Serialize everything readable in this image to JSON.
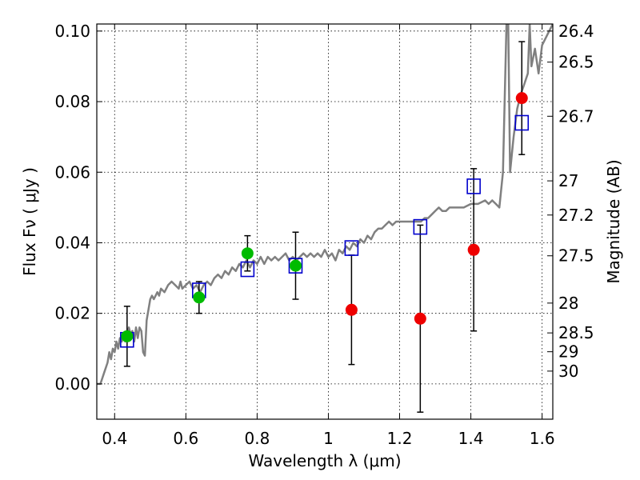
{
  "chart_data": {
    "type": "scatter",
    "xlabel": "Wavelength  λ (μm)",
    "ylabel": "Flux  Fν  ( μJy )",
    "y2label": "Magnitude (AB)",
    "xlim": [
      0.35,
      1.63
    ],
    "ylim": [
      -0.01,
      0.102
    ],
    "grid": true,
    "x_ticks": [
      0.4,
      0.6,
      0.8,
      1.0,
      1.2,
      1.4,
      1.6
    ],
    "x_tick_labels": [
      "0.4",
      "0.6",
      "0.8",
      "1",
      "1.2",
      "1.4",
      "1.6"
    ],
    "y_ticks": [
      0.0,
      0.02,
      0.04,
      0.06,
      0.08,
      0.1
    ],
    "y_tick_labels": [
      "0.00",
      "0.02",
      "0.04",
      "0.06",
      "0.08",
      "0.10"
    ],
    "mag_ticks": [
      26.4,
      26.5,
      26.7,
      27,
      27.2,
      27.5,
      28,
      28.5,
      29,
      30
    ],
    "mag_tick_labels": [
      "26.4",
      "26.5",
      "26.7",
      "27",
      "27.2",
      "27.5",
      "28",
      "28.5",
      "29",
      "30"
    ],
    "colors": {
      "model": "#808080",
      "model_points": "#0000cc",
      "observed_detected": "#00bb00",
      "observed_nondetected": "#ee0000",
      "errorbar": "#000000"
    },
    "series": [
      {
        "kind": "line",
        "points": [
          [
            0.35,
            0.0
          ],
          [
            0.36,
            0.0
          ],
          [
            0.37,
            0.003
          ],
          [
            0.38,
            0.006
          ],
          [
            0.385,
            0.009
          ],
          [
            0.39,
            0.007
          ],
          [
            0.395,
            0.01
          ],
          [
            0.4,
            0.009
          ],
          [
            0.405,
            0.012
          ],
          [
            0.41,
            0.01
          ],
          [
            0.415,
            0.013
          ],
          [
            0.42,
            0.012
          ],
          [
            0.425,
            0.014
          ],
          [
            0.43,
            0.012
          ],
          [
            0.44,
            0.016
          ],
          [
            0.445,
            0.014
          ],
          [
            0.45,
            0.015
          ],
          [
            0.455,
            0.012
          ],
          [
            0.46,
            0.016
          ],
          [
            0.465,
            0.013
          ],
          [
            0.47,
            0.016
          ],
          [
            0.475,
            0.015
          ],
          [
            0.48,
            0.009
          ],
          [
            0.485,
            0.008
          ],
          [
            0.49,
            0.018
          ],
          [
            0.5,
            0.024
          ],
          [
            0.505,
            0.025
          ],
          [
            0.51,
            0.024
          ],
          [
            0.52,
            0.026
          ],
          [
            0.525,
            0.025
          ],
          [
            0.53,
            0.027
          ],
          [
            0.54,
            0.026
          ],
          [
            0.55,
            0.028
          ],
          [
            0.56,
            0.029
          ],
          [
            0.57,
            0.028
          ],
          [
            0.58,
            0.027
          ],
          [
            0.585,
            0.029
          ],
          [
            0.59,
            0.027
          ],
          [
            0.6,
            0.028
          ],
          [
            0.61,
            0.029
          ],
          [
            0.62,
            0.027
          ],
          [
            0.63,
            0.028
          ],
          [
            0.64,
            0.026
          ],
          [
            0.65,
            0.028
          ],
          [
            0.66,
            0.029
          ],
          [
            0.67,
            0.028
          ],
          [
            0.68,
            0.03
          ],
          [
            0.69,
            0.031
          ],
          [
            0.7,
            0.03
          ],
          [
            0.71,
            0.032
          ],
          [
            0.72,
            0.031
          ],
          [
            0.73,
            0.033
          ],
          [
            0.74,
            0.032
          ],
          [
            0.75,
            0.034
          ],
          [
            0.76,
            0.033
          ],
          [
            0.77,
            0.035
          ],
          [
            0.78,
            0.033
          ],
          [
            0.79,
            0.035
          ],
          [
            0.8,
            0.034
          ],
          [
            0.81,
            0.036
          ],
          [
            0.82,
            0.034
          ],
          [
            0.83,
            0.036
          ],
          [
            0.84,
            0.035
          ],
          [
            0.85,
            0.036
          ],
          [
            0.86,
            0.035
          ],
          [
            0.87,
            0.036
          ],
          [
            0.88,
            0.037
          ],
          [
            0.89,
            0.035
          ],
          [
            0.9,
            0.036
          ],
          [
            0.91,
            0.035
          ],
          [
            0.92,
            0.036
          ],
          [
            0.93,
            0.037
          ],
          [
            0.94,
            0.036
          ],
          [
            0.95,
            0.037
          ],
          [
            0.96,
            0.036
          ],
          [
            0.97,
            0.037
          ],
          [
            0.98,
            0.036
          ],
          [
            0.99,
            0.038
          ],
          [
            1.0,
            0.036
          ],
          [
            1.01,
            0.037
          ],
          [
            1.02,
            0.035
          ],
          [
            1.03,
            0.038
          ],
          [
            1.04,
            0.037
          ],
          [
            1.05,
            0.039
          ],
          [
            1.06,
            0.038
          ],
          [
            1.07,
            0.04
          ],
          [
            1.08,
            0.039
          ],
          [
            1.09,
            0.041
          ],
          [
            1.1,
            0.04
          ],
          [
            1.11,
            0.042
          ],
          [
            1.12,
            0.041
          ],
          [
            1.13,
            0.043
          ],
          [
            1.14,
            0.044
          ],
          [
            1.15,
            0.044
          ],
          [
            1.16,
            0.045
          ],
          [
            1.17,
            0.046
          ],
          [
            1.18,
            0.045
          ],
          [
            1.19,
            0.046
          ],
          [
            1.2,
            0.046
          ],
          [
            1.22,
            0.046
          ],
          [
            1.24,
            0.046
          ],
          [
            1.26,
            0.046
          ],
          [
            1.27,
            0.047
          ],
          [
            1.28,
            0.047
          ],
          [
            1.29,
            0.048
          ],
          [
            1.3,
            0.049
          ],
          [
            1.31,
            0.05
          ],
          [
            1.32,
            0.049
          ],
          [
            1.33,
            0.049
          ],
          [
            1.34,
            0.05
          ],
          [
            1.35,
            0.05
          ],
          [
            1.36,
            0.05
          ],
          [
            1.38,
            0.05
          ],
          [
            1.4,
            0.051
          ],
          [
            1.42,
            0.051
          ],
          [
            1.44,
            0.052
          ],
          [
            1.45,
            0.051
          ],
          [
            1.46,
            0.052
          ],
          [
            1.47,
            0.051
          ],
          [
            1.48,
            0.05
          ],
          [
            1.49,
            0.06
          ],
          [
            1.5,
            0.102
          ],
          [
            1.505,
            0.102
          ],
          [
            1.51,
            0.06
          ],
          [
            1.52,
            0.07
          ],
          [
            1.53,
            0.078
          ],
          [
            1.54,
            0.082
          ],
          [
            1.55,
            0.085
          ],
          [
            1.56,
            0.088
          ],
          [
            1.565,
            0.102
          ],
          [
            1.57,
            0.09
          ],
          [
            1.58,
            0.095
          ],
          [
            1.59,
            0.088
          ],
          [
            1.6,
            0.096
          ],
          [
            1.61,
            0.098
          ],
          [
            1.62,
            0.1
          ],
          [
            1.63,
            0.102
          ]
        ]
      },
      {
        "kind": "model_points",
        "x": [
          0.435,
          0.637,
          0.773,
          0.908,
          1.065,
          1.258,
          1.408,
          1.543
        ],
        "y": [
          0.0125,
          0.0265,
          0.0325,
          0.0335,
          0.0385,
          0.0445,
          0.056,
          0.074
        ]
      },
      {
        "kind": "observed_detected",
        "x": [
          0.435,
          0.637,
          0.773,
          0.908
        ],
        "y": [
          0.0135,
          0.0245,
          0.037,
          0.0335
        ],
        "err": [
          0.0085,
          0.0045,
          0.005,
          0.0095
        ]
      },
      {
        "kind": "observed_nondetected",
        "x": [
          1.065,
          1.258,
          1.408,
          1.543
        ],
        "y": [
          0.021,
          0.0185,
          0.038,
          0.081
        ],
        "err": [
          0.0155,
          0.0265,
          0.023,
          0.016
        ]
      }
    ]
  }
}
